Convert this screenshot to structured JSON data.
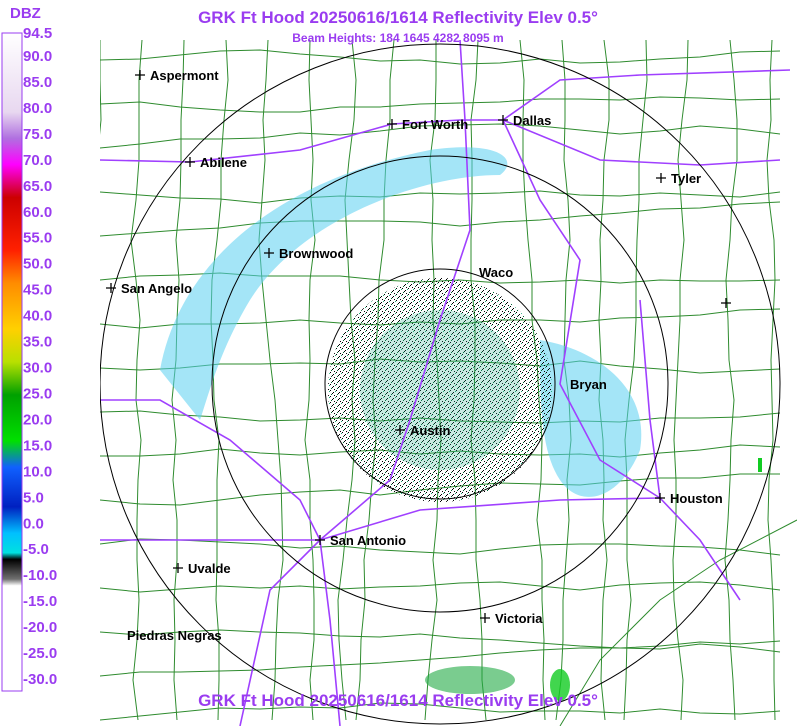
{
  "header": {
    "title": "GRK Ft Hood 20250616/1614 Reflectivity Elev 0.5°",
    "subtitle": "Beam Heights: 184 1645 4282 8095 m"
  },
  "legend": {
    "unit": "DBZ",
    "labels": [
      "94.5",
      "90.0",
      "85.0",
      "80.0",
      "75.0",
      "70.0",
      "65.0",
      "60.0",
      "55.0",
      "50.0",
      "45.0",
      "40.0",
      "35.0",
      "30.0",
      "25.0",
      "20.0",
      "15.0",
      "10.0",
      "5.0",
      "0.0",
      "-5.0",
      "-10.0",
      "-15.0",
      "-20.0",
      "-25.0",
      "-30.0"
    ]
  },
  "cities": [
    "Aspermont",
    "Abilene",
    "Fort Worth",
    "Dallas",
    "Tyler",
    "Brownwood",
    "San Angelo",
    "Waco",
    "Bryan",
    "Austin",
    "Houston",
    "San Antonio",
    "Uvalde",
    "Victoria",
    "Piedras Negras"
  ],
  "footer": {
    "title": "GRK Ft Hood 20250616/1614 Reflectivity Elev 0.5°"
  }
}
